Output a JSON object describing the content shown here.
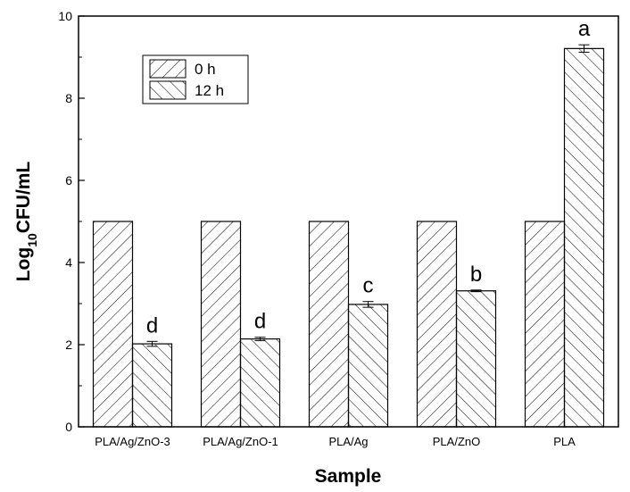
{
  "chart_data": {
    "type": "bar",
    "categories": [
      "PLA/Ag/ZnO-3",
      "PLA/Ag/ZnO-1",
      "PLA/Ag",
      "PLA/ZnO",
      "PLA"
    ],
    "series": [
      {
        "name": "0 h",
        "values": [
          5.0,
          5.0,
          5.0,
          5.0,
          5.0
        ],
        "errors": [
          0,
          0,
          0,
          0,
          0
        ]
      },
      {
        "name": "12 h",
        "values": [
          2.02,
          2.14,
          2.98,
          3.31,
          9.21
        ],
        "errors": [
          0.06,
          0.04,
          0.07,
          0.02,
          0.09
        ]
      }
    ],
    "significance_labels": [
      "d",
      "d",
      "c",
      "b",
      "a"
    ],
    "xlabel": "Sample",
    "ylabel_main": "Log",
    "ylabel_sub": "10",
    "ylabel_rest": "CFU/mL",
    "ylim": [
      0,
      10
    ],
    "yticks": [
      0,
      2,
      4,
      6,
      8,
      10
    ],
    "legend_position": "top-left",
    "grid": false
  }
}
